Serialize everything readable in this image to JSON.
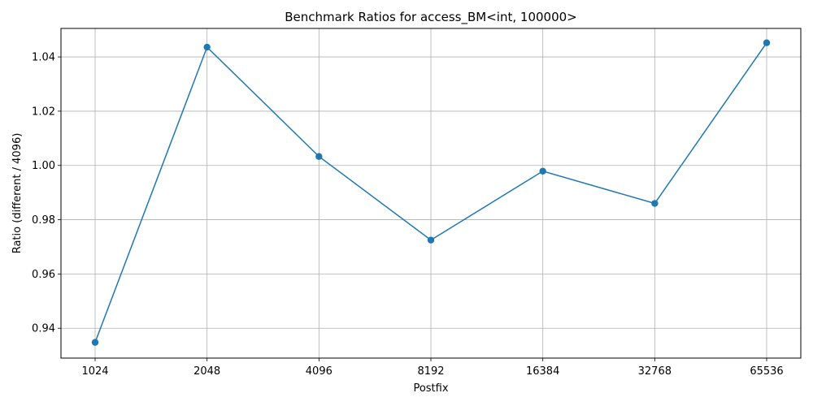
{
  "chart_data": {
    "type": "line",
    "title": "Benchmark Ratios for access_BM<int, 100000>",
    "xlabel": "Postfix",
    "ylabel": "Ratio (different / 4096)",
    "categories": [
      "1024",
      "2048",
      "4096",
      "8192",
      "16384",
      "32768",
      "65536"
    ],
    "series": [
      {
        "values": [
          0.9348,
          1.0436,
          1.0033,
          0.9725,
          0.9979,
          0.986,
          1.0452
        ],
        "color": "#1f77b4",
        "marker": "circle"
      }
    ],
    "yticks": [
      "0.94",
      "0.96",
      "0.98",
      "1.00",
      "1.02",
      "1.04"
    ],
    "ylim": [
      0.929,
      1.0505
    ],
    "grid": true,
    "legend": "none"
  }
}
